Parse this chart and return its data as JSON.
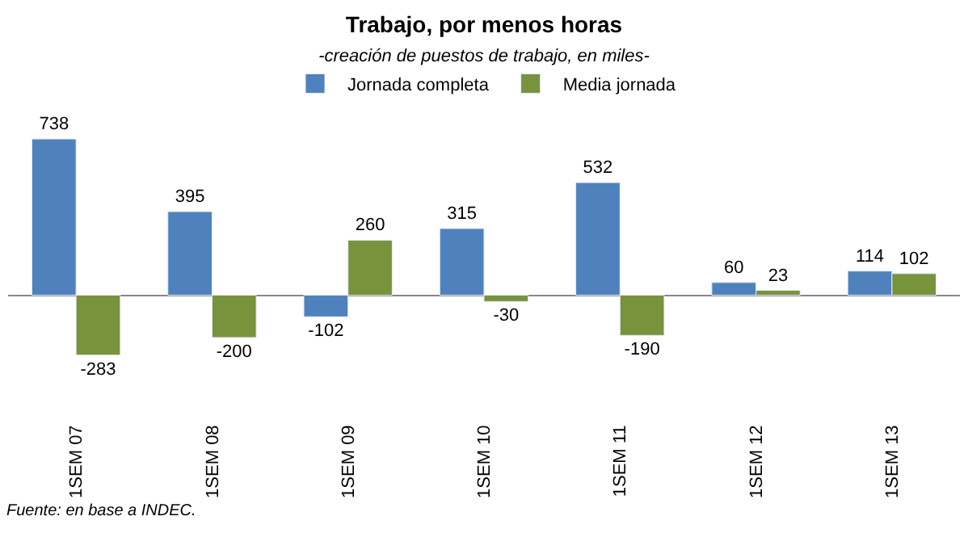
{
  "chart_data": {
    "type": "bar",
    "title": "Trabajo, por menos horas",
    "subtitle": "-creación de puestos de trabajo, en miles-",
    "categories": [
      "1SEM 07",
      "1SEM 08",
      "1SEM 09",
      "1SEM 10",
      "1SEM 11",
      "1SEM 12",
      "1SEM 13"
    ],
    "series": [
      {
        "name": "Jornada completa",
        "color": "#4f81bd",
        "values": [
          738,
          395,
          -102,
          315,
          532,
          60,
          114
        ]
      },
      {
        "name": "Media jornada",
        "color": "#77933c",
        "values": [
          -283,
          -200,
          260,
          -30,
          -190,
          23,
          102
        ]
      }
    ],
    "data_labels": true,
    "legend": "top",
    "annotations": [
      "Fuente: en base a INDEC."
    ]
  }
}
